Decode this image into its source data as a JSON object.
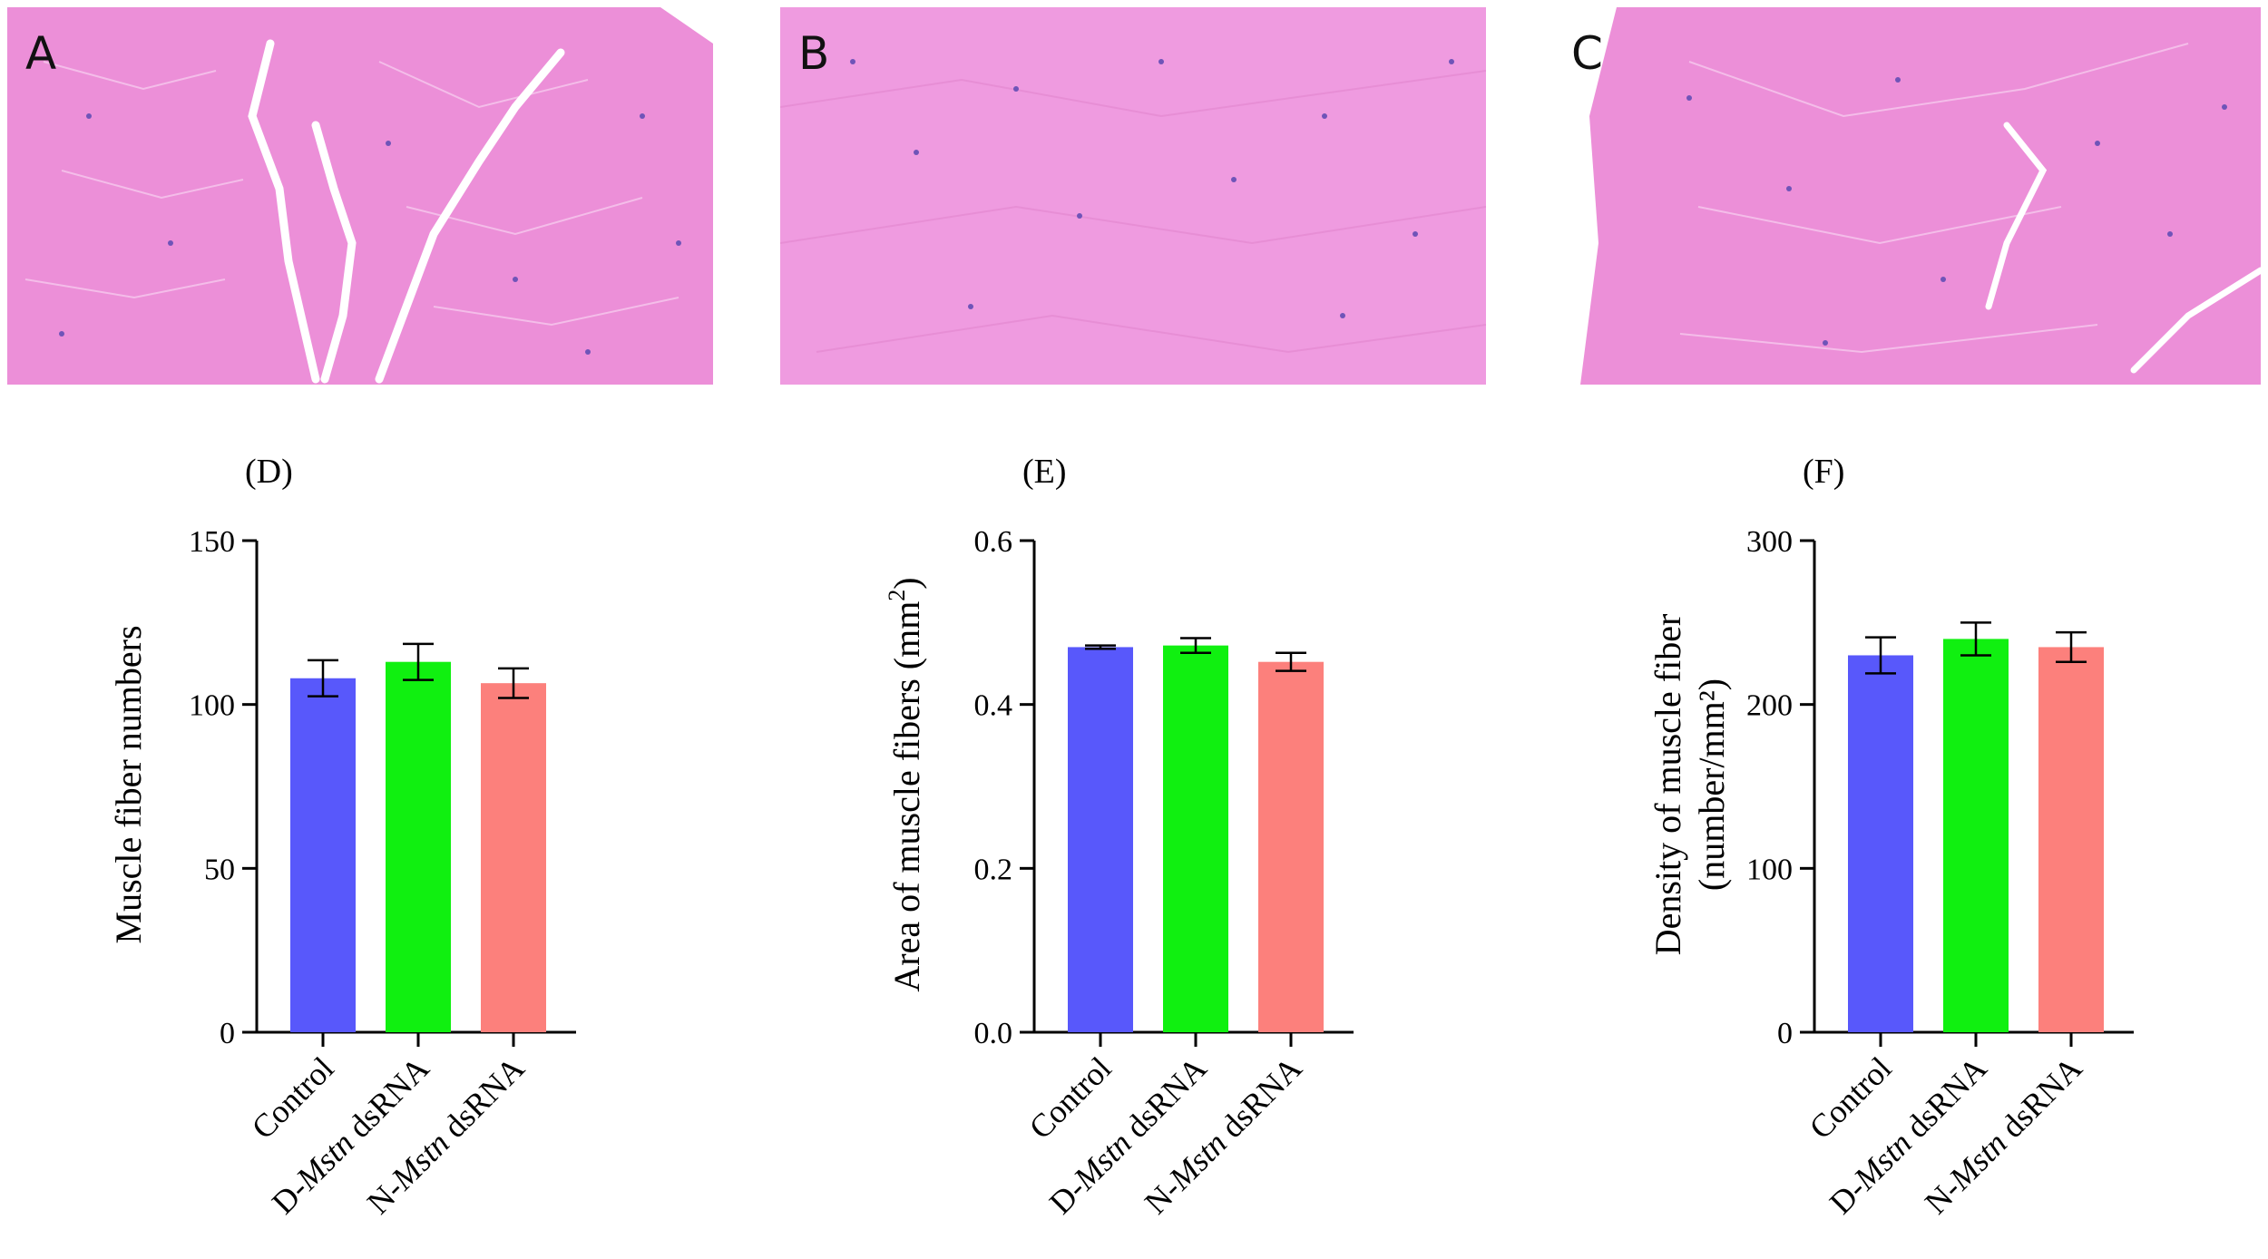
{
  "micrographs": [
    {
      "id": "A",
      "label": "A"
    },
    {
      "id": "B",
      "label": "B"
    },
    {
      "id": "C",
      "label": "C"
    }
  ],
  "colors": {
    "tissue": "#ec8fd8",
    "nucleus": "#6f54b8",
    "control": "#5858fb",
    "d_mstn": "#10f010",
    "n_mstn": "#fc807c"
  },
  "chart_data": [
    {
      "type": "bar",
      "panel_label": "(D)",
      "ylabel": "Muscle fiber numbers",
      "ylim": [
        0,
        150
      ],
      "yticks": [
        "0",
        "50",
        "100",
        "150"
      ],
      "categories": [
        {
          "prefix": "",
          "italic": "",
          "suffix": "Control"
        },
        {
          "prefix": "D-",
          "italic": "Mstn",
          "suffix": " dsRNA"
        },
        {
          "prefix": "N-",
          "italic": "Mstn",
          "suffix": " dsRNA"
        }
      ],
      "values": [
        108,
        113,
        106.5
      ],
      "errors": [
        5.5,
        5.5,
        4.5
      ],
      "colors": [
        "#5858fb",
        "#10f010",
        "#fc807c"
      ]
    },
    {
      "type": "bar",
      "panel_label": "(E)",
      "ylabel": "Area of muscle fibers (mm",
      "ylabel_sup": "2",
      "ylabel_end": ")",
      "ylim": [
        0,
        0.6
      ],
      "yticks": [
        "0.0",
        "0.2",
        "0.4",
        "0.6"
      ],
      "categories": [
        {
          "prefix": "",
          "italic": "",
          "suffix": "Control"
        },
        {
          "prefix": "D-",
          "italic": "Mstn",
          "suffix": " dsRNA"
        },
        {
          "prefix": "N-",
          "italic": "Mstn",
          "suffix": " dsRNA"
        }
      ],
      "values": [
        0.47,
        0.472,
        0.452
      ],
      "errors": [
        0.002,
        0.009,
        0.011
      ],
      "colors": [
        "#5858fb",
        "#10f010",
        "#fc807c"
      ]
    },
    {
      "type": "bar",
      "panel_label": "(F)",
      "ylabel_lines": [
        "Density of muscle fiber",
        "(number/mm²)"
      ],
      "ylim": [
        0,
        300
      ],
      "yticks": [
        "0",
        "100",
        "200",
        "300"
      ],
      "categories": [
        {
          "prefix": "",
          "italic": "",
          "suffix": "Control"
        },
        {
          "prefix": "D-",
          "italic": "Mstn",
          "suffix": " dsRNA"
        },
        {
          "prefix": "N-",
          "italic": "Mstn",
          "suffix": " dsRNA"
        }
      ],
      "values": [
        230,
        240,
        235
      ],
      "errors": [
        11,
        10,
        9
      ],
      "colors": [
        "#5858fb",
        "#10f010",
        "#fc807c"
      ]
    }
  ]
}
